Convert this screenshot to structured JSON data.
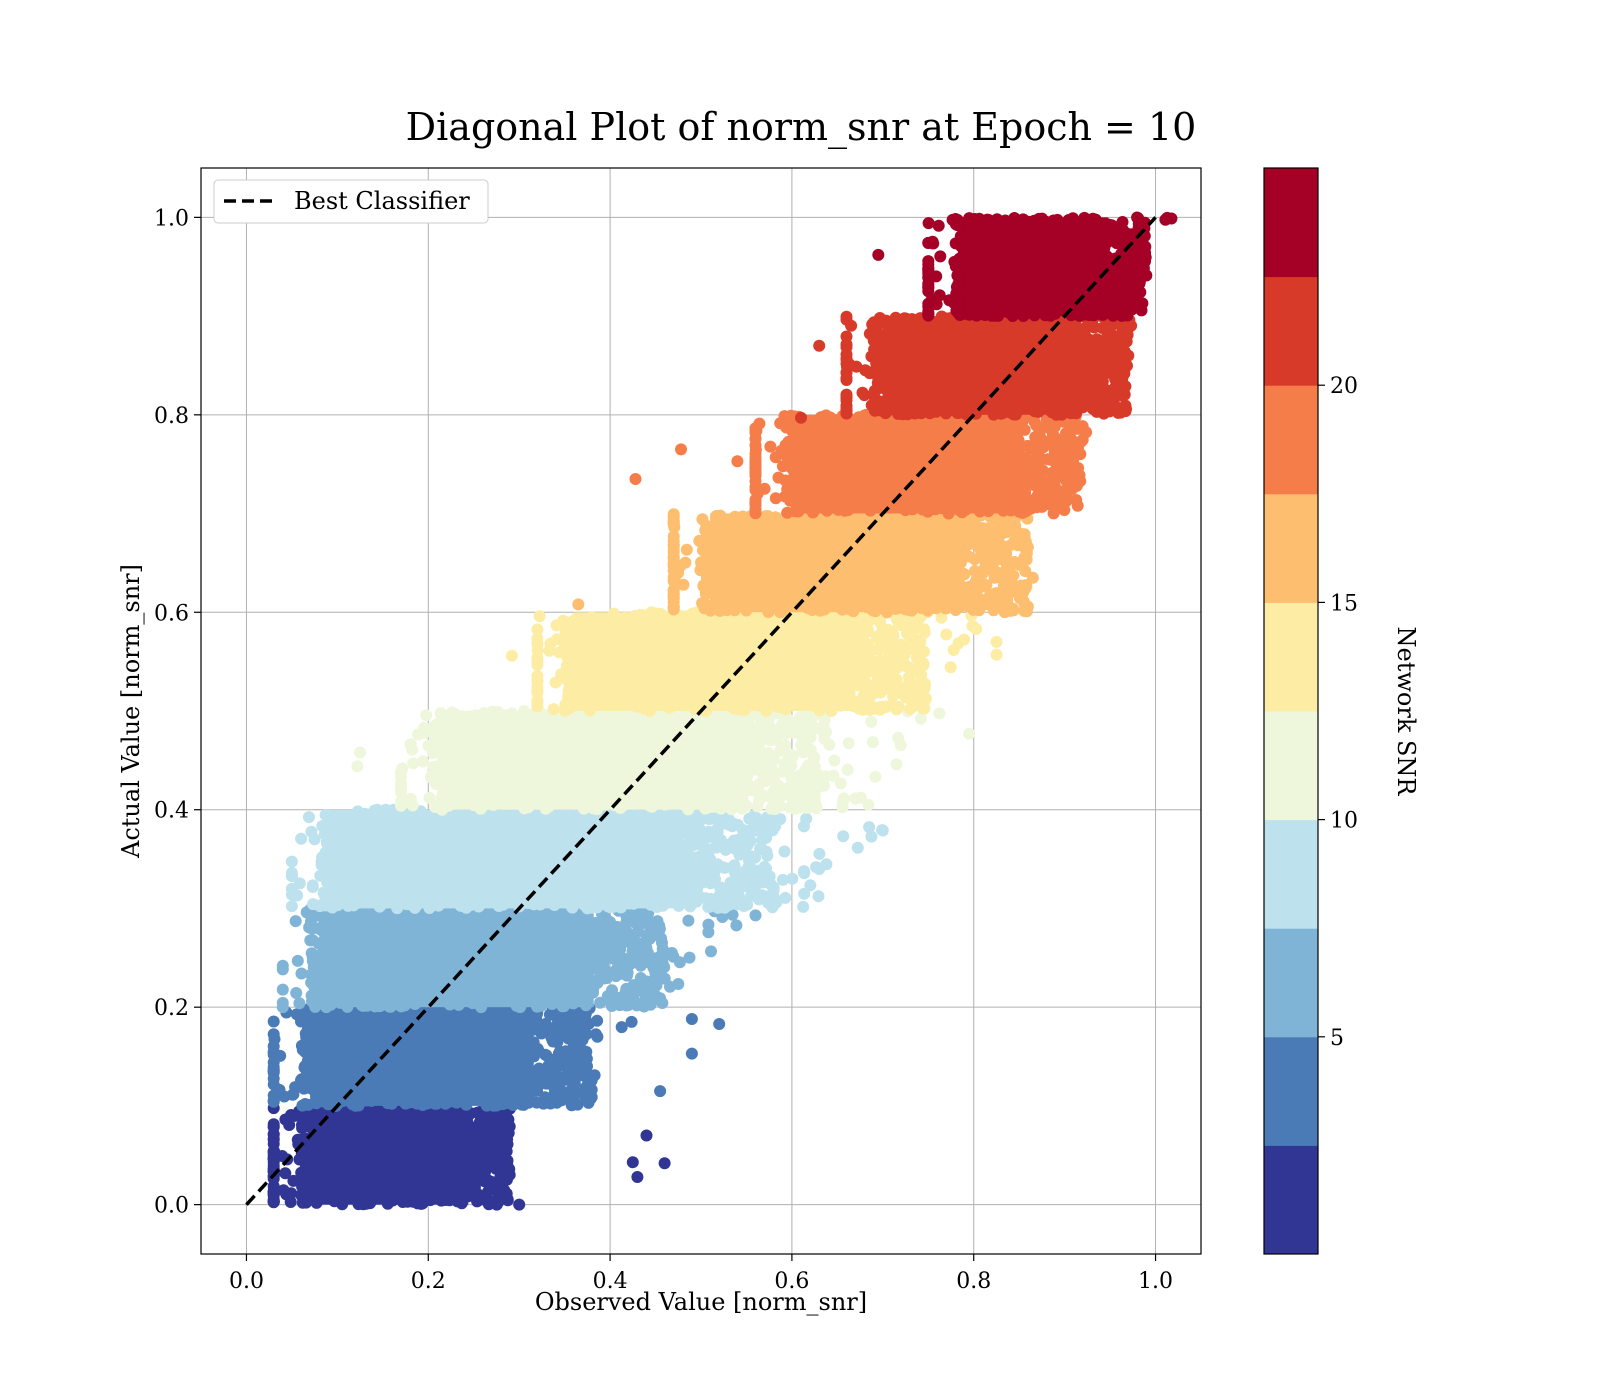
{
  "chart_data": {
    "type": "scatter",
    "title": "Diagonal Plot of norm_snr at Epoch = 10",
    "xlabel": "Observed Value [norm_snr]",
    "ylabel": "Actual Value [norm_snr]",
    "xlim": [
      -0.05,
      1.05
    ],
    "ylim": [
      -0.05,
      1.05
    ],
    "xticks": [
      "0.0",
      "0.2",
      "0.4",
      "0.6",
      "0.8",
      "1.0"
    ],
    "yticks": [
      "0.0",
      "0.2",
      "0.4",
      "0.6",
      "0.8",
      "1.0"
    ],
    "grid": true,
    "legend": {
      "placement": "upper-left",
      "entries": [
        "Best Classifier"
      ]
    },
    "reference_line": {
      "name": "Best Classifier",
      "style": "dashed",
      "color": "#000000",
      "x": [
        0,
        1
      ],
      "y": [
        0,
        1
      ]
    },
    "colorbar": {
      "label": "Network SNR",
      "ticks": [
        "5",
        "10",
        "15",
        "20"
      ],
      "tick_values": [
        5,
        10,
        15,
        20
      ],
      "range": [
        0,
        25
      ],
      "colors": [
        "#313695",
        "#4a7bb7",
        "#80b4d6",
        "#bde2ee",
        "#eef7dc",
        "#fdeda4",
        "#fdbe6f",
        "#f57d4a",
        "#d83a2a",
        "#a50026"
      ]
    },
    "bands": [
      {
        "ymin": 0.0,
        "ymax": 0.1,
        "xmin": 0.06,
        "xmax": 0.29,
        "spread": 0.22,
        "color": "#313695"
      },
      {
        "ymin": 0.1,
        "ymax": 0.2,
        "xmin": 0.06,
        "xmax": 0.38,
        "spread": 0.14,
        "color": "#4a7bb7"
      },
      {
        "ymin": 0.2,
        "ymax": 0.3,
        "xmin": 0.07,
        "xmax": 0.46,
        "spread": 0.1,
        "color": "#80b4d6"
      },
      {
        "ymin": 0.3,
        "ymax": 0.4,
        "xmin": 0.08,
        "xmax": 0.58,
        "spread": 0.12,
        "color": "#bde2ee"
      },
      {
        "ymin": 0.4,
        "ymax": 0.5,
        "xmin": 0.2,
        "xmax": 0.64,
        "spread": 0.14,
        "color": "#eef7dc"
      },
      {
        "ymin": 0.5,
        "ymax": 0.6,
        "xmin": 0.35,
        "xmax": 0.75,
        "spread": 0.12,
        "color": "#fdeda4"
      },
      {
        "ymin": 0.6,
        "ymax": 0.7,
        "xmin": 0.5,
        "xmax": 0.86,
        "spread": 0.1,
        "color": "#fdbe6f"
      },
      {
        "ymin": 0.7,
        "ymax": 0.8,
        "xmin": 0.59,
        "xmax": 0.92,
        "spread": 0.08,
        "color": "#f57d4a"
      },
      {
        "ymin": 0.8,
        "ymax": 0.9,
        "xmin": 0.69,
        "xmax": 0.97,
        "spread": 0.06,
        "color": "#d83a2a"
      },
      {
        "ymin": 0.9,
        "ymax": 1.0,
        "xmin": 0.78,
        "xmax": 0.99,
        "spread": 0.04,
        "color": "#a50026"
      }
    ],
    "outliers": [
      {
        "x": 0.695,
        "y": 0.962,
        "color": "#a50026"
      },
      {
        "x": 0.63,
        "y": 0.87,
        "color": "#d83a2a"
      },
      {
        "x": 0.61,
        "y": 0.797,
        "color": "#d83a2a"
      },
      {
        "x": 0.478,
        "y": 0.765,
        "color": "#f57d4a"
      },
      {
        "x": 0.428,
        "y": 0.735,
        "color": "#f57d4a"
      },
      {
        "x": 0.54,
        "y": 0.753,
        "color": "#f57d4a"
      },
      {
        "x": 0.365,
        "y": 0.608,
        "color": "#fdbe6f"
      },
      {
        "x": 0.292,
        "y": 0.556,
        "color": "#fdeda4"
      },
      {
        "x": 0.125,
        "y": 0.458,
        "color": "#eef7dc"
      },
      {
        "x": 0.122,
        "y": 0.444,
        "color": "#eef7dc"
      },
      {
        "x": 0.795,
        "y": 0.477,
        "color": "#eef7dc"
      },
      {
        "x": 0.715,
        "y": 0.446,
        "color": "#eef7dc"
      },
      {
        "x": 0.075,
        "y": 0.37,
        "color": "#bde2ee"
      },
      {
        "x": 0.63,
        "y": 0.34,
        "color": "#bde2ee"
      },
      {
        "x": 0.56,
        "y": 0.293,
        "color": "#80b4d6"
      },
      {
        "x": 0.52,
        "y": 0.183,
        "color": "#4a7bb7"
      },
      {
        "x": 0.49,
        "y": 0.188,
        "color": "#4a7bb7"
      },
      {
        "x": 0.49,
        "y": 0.153,
        "color": "#4a7bb7"
      },
      {
        "x": 0.455,
        "y": 0.115,
        "color": "#4a7bb7"
      },
      {
        "x": 0.46,
        "y": 0.042,
        "color": "#313695"
      },
      {
        "x": 0.43,
        "y": 0.028,
        "color": "#313695"
      },
      {
        "x": 0.425,
        "y": 0.043,
        "color": "#313695"
      },
      {
        "x": 0.44,
        "y": 0.07,
        "color": "#313695"
      },
      {
        "x": 0.3,
        "y": 0.0,
        "color": "#313695"
      },
      {
        "x": 0.825,
        "y": 0.57,
        "color": "#fdeda4"
      },
      {
        "x": 0.825,
        "y": 0.557,
        "color": "#fdeda4"
      },
      {
        "x": 0.865,
        "y": 0.635,
        "color": "#fdbe6f"
      },
      {
        "x": 0.835,
        "y": 0.987,
        "color": "#a50026"
      }
    ]
  }
}
